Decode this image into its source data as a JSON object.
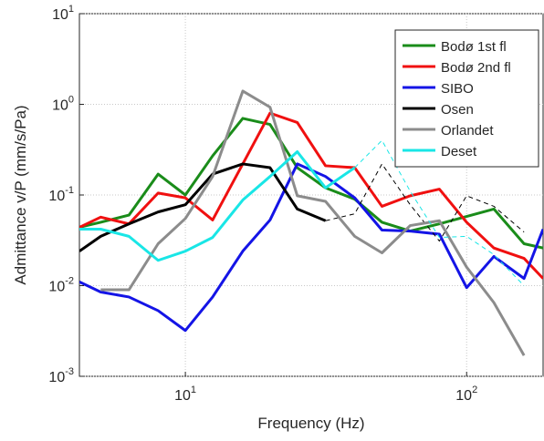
{
  "chart_data": {
    "type": "line",
    "x_label": "Frequency (Hz)",
    "y_label": "Admittance v/P (mm/s/Pa)",
    "x_log": true,
    "y_log": true,
    "grid": true,
    "legend": "upper right",
    "xlim": [
      4.2,
      187
    ],
    "ylim": [
      0.001,
      10
    ],
    "xticks": [
      {
        "value": 10,
        "label": "10^1"
      },
      {
        "value": 100,
        "label": "10^2"
      }
    ],
    "yticks": [
      {
        "value": 0.001,
        "label": "10^-3"
      },
      {
        "value": 0.01,
        "label": "10^-2"
      },
      {
        "value": 0.1,
        "label": "10^-1"
      },
      {
        "value": 1,
        "label": "10^0"
      },
      {
        "value": 10,
        "label": "10^1"
      }
    ],
    "x": [
      4.2,
      5,
      6.3,
      8,
      10,
      12.5,
      16,
      20,
      25,
      31.5,
      40,
      50,
      63,
      80,
      100,
      125,
      160,
      187
    ],
    "series": [
      {
        "name": "Bodø 1st fl",
        "color": "#1a8c1a",
        "values": [
          0.044,
          0.05,
          0.06,
          0.17,
          0.1,
          0.27,
          0.7,
          0.6,
          0.2,
          0.12,
          0.09,
          0.05,
          0.04,
          0.048,
          0.058,
          0.07,
          0.029,
          0.026
        ]
      },
      {
        "name": "Bodø 2nd fl",
        "color": "#f01010",
        "values": [
          0.044,
          0.057,
          0.048,
          0.105,
          0.093,
          0.053,
          0.22,
          0.8,
          0.63,
          0.21,
          0.2,
          0.075,
          0.098,
          0.116,
          0.05,
          0.026,
          0.02,
          0.012
        ]
      },
      {
        "name": "SIBO",
        "color": "#1414e6",
        "values": [
          0.011,
          0.0085,
          0.0075,
          0.0053,
          0.0032,
          0.0075,
          0.024,
          0.053,
          0.22,
          0.16,
          0.093,
          0.041,
          0.04,
          0.037,
          0.0095,
          0.021,
          0.012,
          0.042
        ]
      },
      {
        "name": "Osen",
        "color": "#000000",
        "dashed_from": 9,
        "values": [
          0.024,
          0.035,
          0.048,
          0.065,
          0.078,
          0.17,
          0.22,
          0.2,
          0.07,
          0.052,
          0.062,
          0.22,
          0.078,
          0.031,
          0.098,
          0.075,
          0.039,
          null
        ]
      },
      {
        "name": "Orlandet",
        "color": "#8c8c8c",
        "values": [
          null,
          0.009,
          0.009,
          0.029,
          0.055,
          0.16,
          1.4,
          0.93,
          0.098,
          0.085,
          0.035,
          0.023,
          0.046,
          0.052,
          0.016,
          0.0065,
          0.0017,
          null
        ]
      },
      {
        "name": "Deset",
        "color": "#19e6e6",
        "dashed_from": 10,
        "values": [
          0.042,
          0.042,
          0.035,
          0.019,
          0.024,
          0.034,
          0.088,
          0.16,
          0.3,
          0.12,
          0.2,
          0.4,
          0.11,
          0.034,
          0.035,
          0.022,
          0.01,
          null
        ]
      }
    ]
  }
}
